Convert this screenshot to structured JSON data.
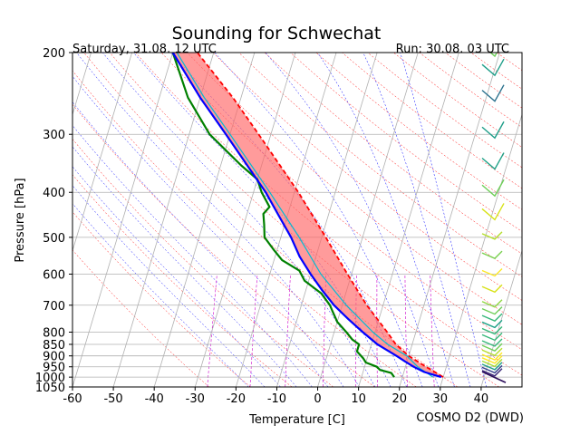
{
  "chart_data": {
    "type": "line",
    "title": "Sounding for Schwechat",
    "subtitle_left": "Saturday, 31.08. 12 UTC",
    "subtitle_right": "Run: 30.08. 03 UTC",
    "xlabel": "Temperature [C]",
    "ylabel": "Pressure [hPa]",
    "source": "COSMO D2 (DWD)",
    "xlim": [
      -60,
      50
    ],
    "ylim": [
      1050,
      200
    ],
    "y_scale": "log",
    "x_ticks": [
      "-60",
      "-50",
      "-40",
      "-30",
      "-20",
      "-10",
      "0",
      "10",
      "20",
      "30",
      "40"
    ],
    "y_ticks": [
      {
        "p": 200,
        "label": "200"
      },
      {
        "p": 300,
        "label": "300"
      },
      {
        "p": 400,
        "label": "400"
      },
      {
        "p": 500,
        "label": "500"
      },
      {
        "p": 600,
        "label": "600"
      },
      {
        "p": 700,
        "label": "700"
      },
      {
        "p": 800,
        "label": "800"
      },
      {
        "p": 850,
        "label": "850"
      },
      {
        "p": 900,
        "label": "900"
      },
      {
        "p": 950,
        "label": "950"
      },
      {
        "p": 1000,
        "label": "1000"
      },
      {
        "p": 1050,
        "label": "1050"
      }
    ],
    "grid": true,
    "skew": true,
    "series": [
      {
        "key": "temperature",
        "color": "#0000ff",
        "points": [
          [
            1000,
            29.5
          ],
          [
            975,
            25
          ],
          [
            950,
            22
          ],
          [
            925,
            19.5
          ],
          [
            900,
            17
          ],
          [
            850,
            11.5
          ],
          [
            800,
            7
          ],
          [
            750,
            2.5
          ],
          [
            700,
            -2
          ],
          [
            650,
            -6
          ],
          [
            600,
            -10
          ],
          [
            550,
            -14
          ],
          [
            500,
            -17.5
          ],
          [
            450,
            -22
          ],
          [
            400,
            -27
          ],
          [
            350,
            -33.5
          ],
          [
            300,
            -41
          ],
          [
            250,
            -50
          ],
          [
            200,
            -60
          ]
        ]
      },
      {
        "key": "dewpoint",
        "color": "#008000",
        "points": [
          [
            1000,
            18
          ],
          [
            990,
            17.5
          ],
          [
            980,
            17
          ],
          [
            965,
            14
          ],
          [
            950,
            13
          ],
          [
            930,
            10
          ],
          [
            910,
            9
          ],
          [
            880,
            7
          ],
          [
            850,
            7
          ],
          [
            830,
            5
          ],
          [
            800,
            3
          ],
          [
            760,
            0
          ],
          [
            720,
            -2
          ],
          [
            700,
            -3
          ],
          [
            660,
            -6
          ],
          [
            620,
            -11
          ],
          [
            590,
            -13
          ],
          [
            560,
            -18
          ],
          [
            530,
            -21
          ],
          [
            500,
            -24
          ],
          [
            470,
            -25
          ],
          [
            445,
            -26
          ],
          [
            430,
            -25
          ],
          [
            400,
            -28
          ],
          [
            375,
            -30
          ],
          [
            350,
            -35
          ],
          [
            300,
            -45
          ],
          [
            250,
            -53
          ],
          [
            200,
            -60
          ]
        ]
      },
      {
        "key": "parcel",
        "color": "#ff0000",
        "points": [
          [
            1000,
            30
          ],
          [
            950,
            25
          ],
          [
            900,
            20
          ],
          [
            850,
            16
          ],
          [
            800,
            13
          ],
          [
            700,
            6
          ],
          [
            600,
            -1
          ],
          [
            500,
            -9
          ],
          [
            400,
            -19
          ],
          [
            300,
            -33
          ],
          [
            250,
            -42
          ],
          [
            200,
            -54
          ]
        ]
      },
      {
        "key": "virtual-temperature",
        "color": "#00bcd4",
        "points": [
          [
            1000,
            27.5
          ],
          [
            950,
            23
          ],
          [
            900,
            19.5
          ],
          [
            850,
            14
          ],
          [
            800,
            9.5
          ],
          [
            700,
            1
          ],
          [
            600,
            -7.5
          ],
          [
            500,
            -15.5
          ],
          [
            400,
            -26
          ],
          [
            300,
            -40
          ],
          [
            250,
            -49
          ],
          [
            200,
            -59
          ]
        ]
      }
    ],
    "wind_barbs": [
      {
        "p": 1000,
        "color": "#2c0e5a",
        "style": "calm"
      },
      {
        "p": 985,
        "color": "#3c2a7a",
        "style": "short"
      },
      {
        "p": 970,
        "color": "#353f8c",
        "style": "short"
      },
      {
        "p": 955,
        "color": "#1f9e89",
        "style": "short"
      },
      {
        "p": 940,
        "color": "#a8db34",
        "style": "short"
      },
      {
        "p": 925,
        "color": "#fde725",
        "style": "short"
      },
      {
        "p": 910,
        "color": "#fde725",
        "style": "short"
      },
      {
        "p": 890,
        "color": "#b5de2b",
        "style": "short"
      },
      {
        "p": 870,
        "color": "#6ece58",
        "style": "short"
      },
      {
        "p": 850,
        "color": "#35b779",
        "style": "short"
      },
      {
        "p": 825,
        "color": "#35b779",
        "style": "short"
      },
      {
        "p": 800,
        "color": "#35b779",
        "style": "short"
      },
      {
        "p": 775,
        "color": "#1fa187",
        "style": "short"
      },
      {
        "p": 750,
        "color": "#35b779",
        "style": "short"
      },
      {
        "p": 725,
        "color": "#6ece58",
        "style": "short"
      },
      {
        "p": 700,
        "color": "#90d743",
        "style": "short"
      },
      {
        "p": 650,
        "color": "#d8e219",
        "style": "short"
      },
      {
        "p": 600,
        "color": "#fde725",
        "style": "short"
      },
      {
        "p": 550,
        "color": "#7ad151",
        "style": "short"
      },
      {
        "p": 500,
        "color": "#b5de2b",
        "style": "short"
      },
      {
        "p": 450,
        "color": "#d8e219",
        "style": "long"
      },
      {
        "p": 400,
        "color": "#6ece58",
        "style": "long"
      },
      {
        "p": 350,
        "color": "#1fa187",
        "style": "long"
      },
      {
        "p": 300,
        "color": "#1f9e89",
        "style": "long"
      },
      {
        "p": 250,
        "color": "#2c728e",
        "style": "long"
      },
      {
        "p": 220,
        "color": "#1f9e89",
        "style": "long"
      },
      {
        "p": 200,
        "color": "#6ece58",
        "style": "long"
      }
    ],
    "colors": {
      "cape_fill": "#ff6666",
      "dry_adiabat": "#ff0000",
      "moist_adiabat": "#0000ff",
      "mixing_ratio": "#cc00cc",
      "grid": "#b0b0b0"
    }
  }
}
